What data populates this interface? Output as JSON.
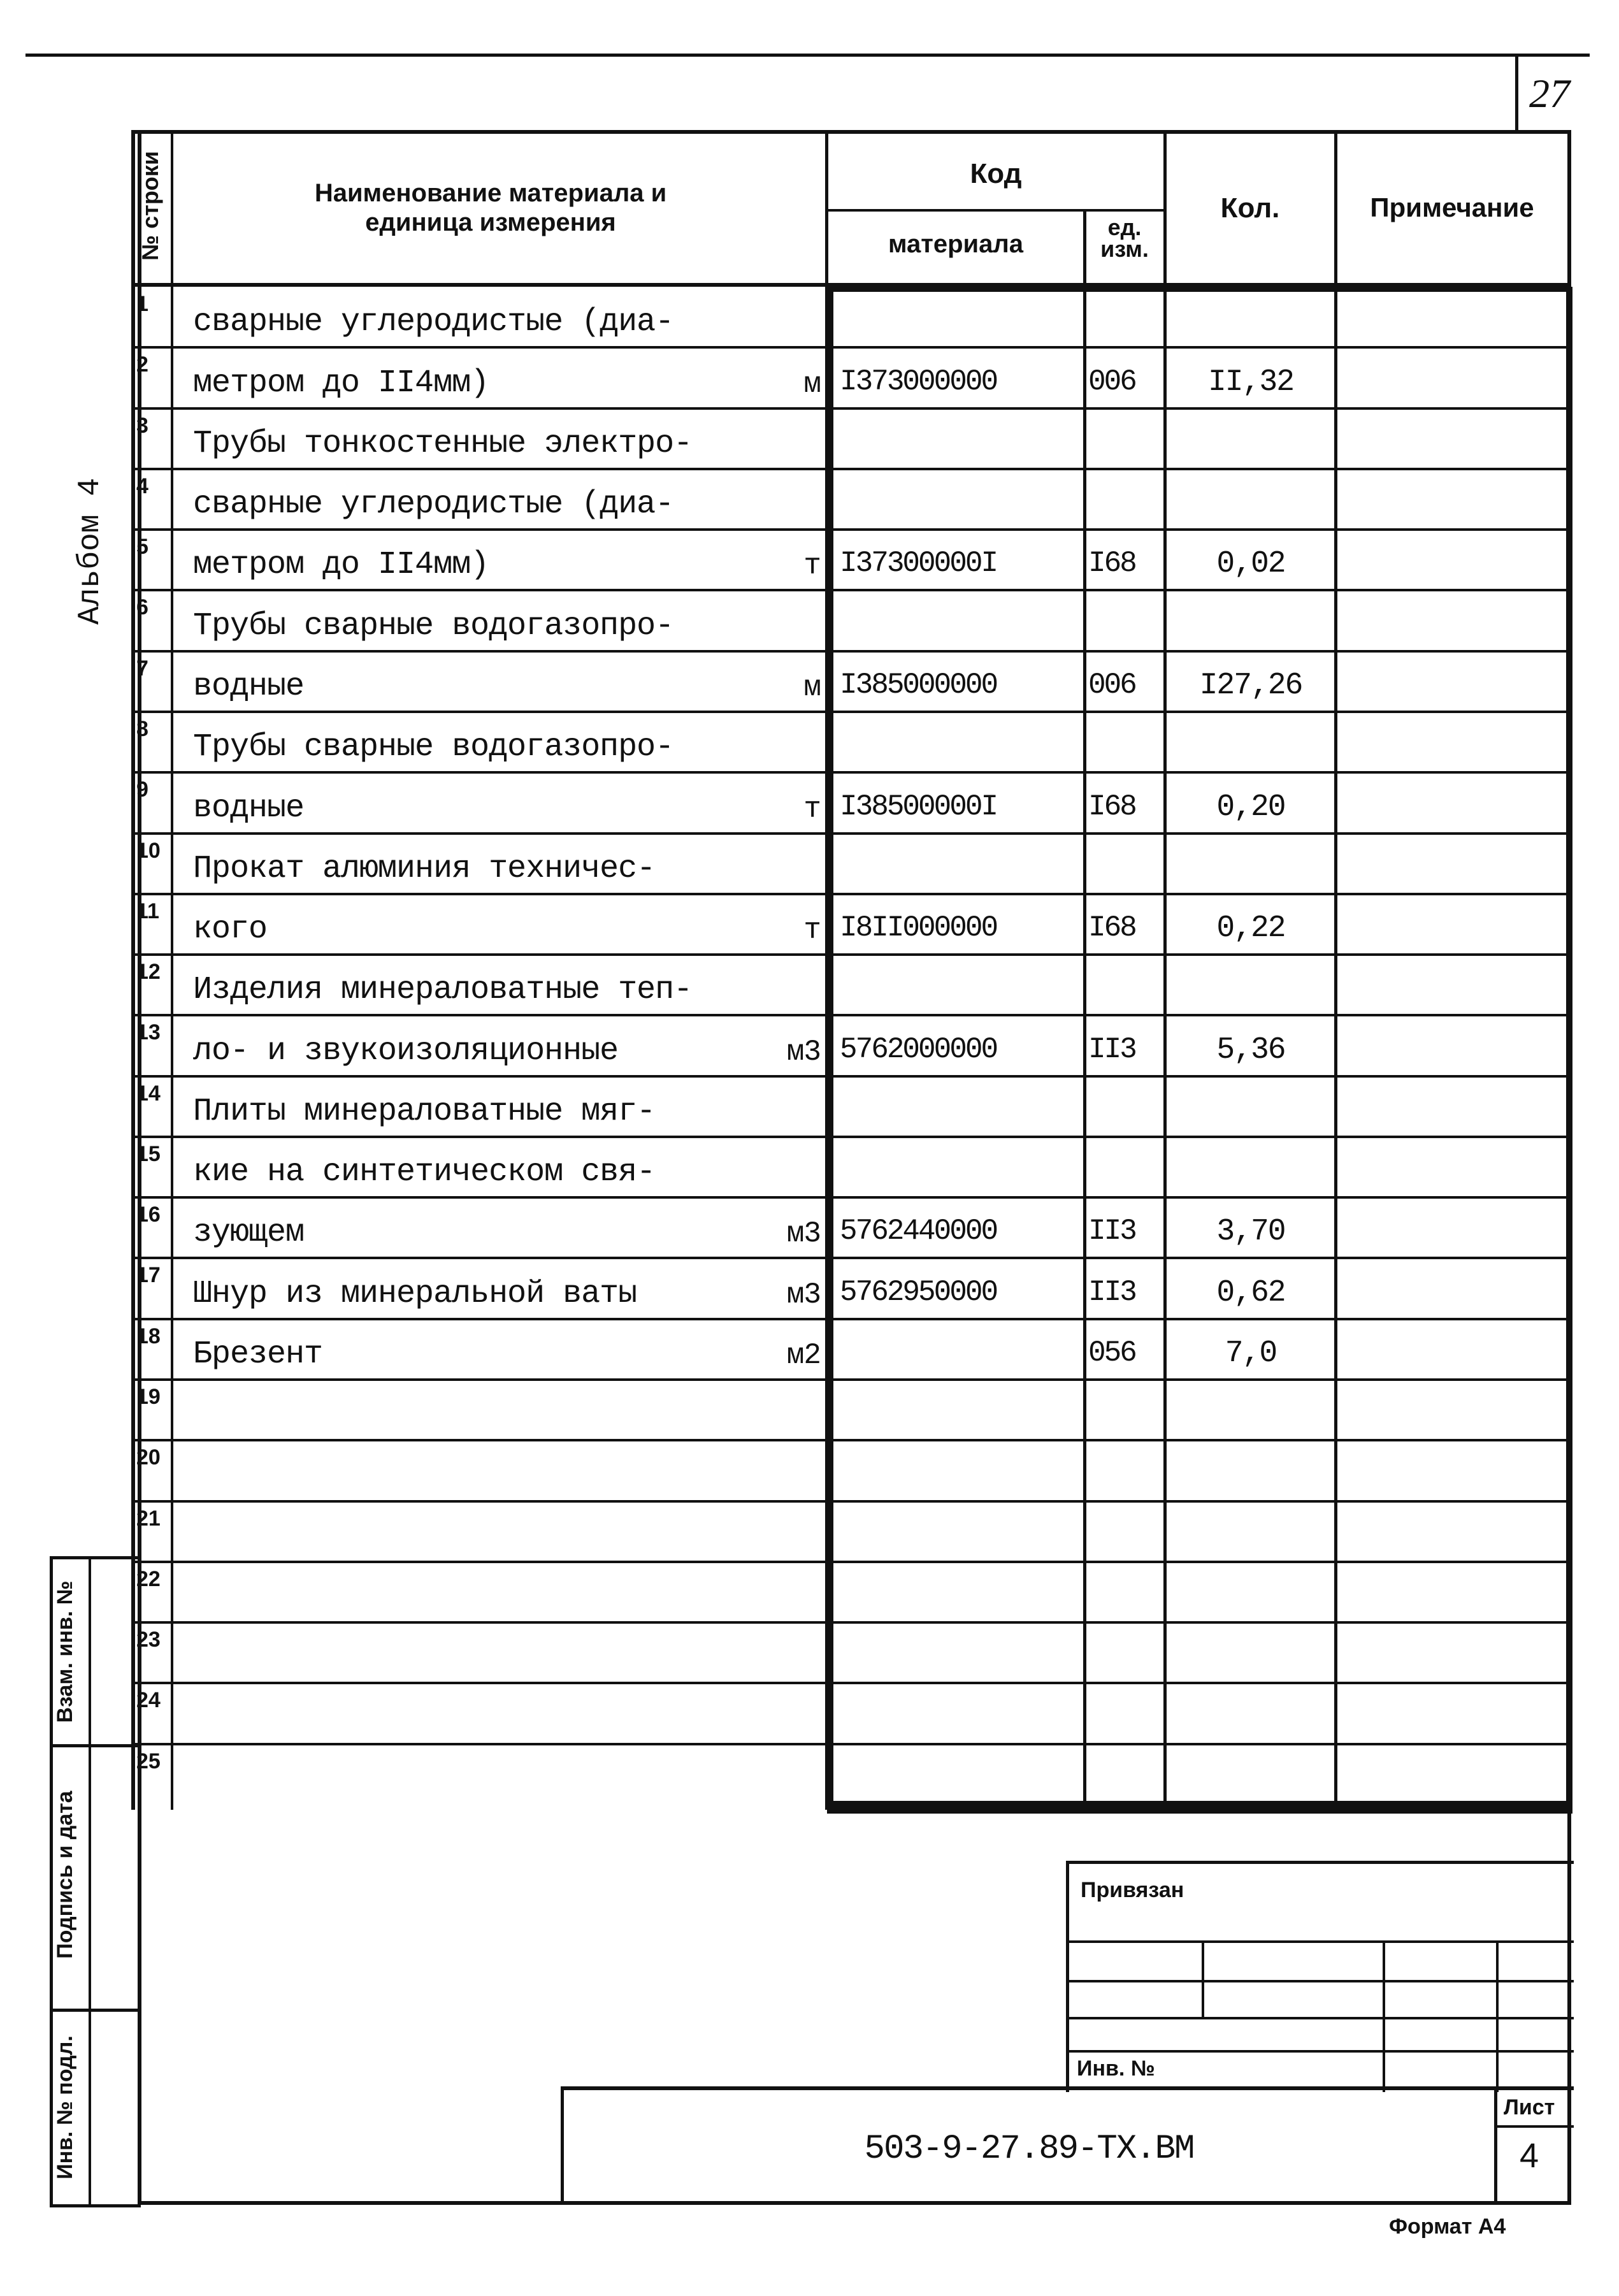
{
  "sheet_number_top": "27",
  "album_label": "Альбом 4",
  "header": {
    "row_no": "№ строки",
    "name": "Наименование материала и единица измерения",
    "code": "Код",
    "code_material": "материала",
    "code_unit": "ед. изм.",
    "qty": "Кол.",
    "note": "Примечание"
  },
  "rows": [
    {
      "n": "1",
      "name": "сварные углеродистые (диа-",
      "unit": "",
      "code": "",
      "unit_code": "",
      "qty": ""
    },
    {
      "n": "2",
      "name": "метром до II4мм)",
      "unit": "м",
      "code": "I373000000",
      "unit_code": "006",
      "qty": "II,32"
    },
    {
      "n": "3",
      "name": "Трубы тонкостенные электро-",
      "unit": "",
      "code": "",
      "unit_code": "",
      "qty": ""
    },
    {
      "n": "4",
      "name": "сварные углеродистые (диа-",
      "unit": "",
      "code": "",
      "unit_code": "",
      "qty": ""
    },
    {
      "n": "5",
      "name": "метром до II4мм)",
      "unit": "т",
      "code": "I37300000I",
      "unit_code": "I68",
      "qty": "0,02"
    },
    {
      "n": "6",
      "name": "Трубы сварные водогазопро-",
      "unit": "",
      "code": "",
      "unit_code": "",
      "qty": ""
    },
    {
      "n": "7",
      "name": "водные",
      "unit": "м",
      "code": "I385000000",
      "unit_code": "006",
      "qty": "I27,26"
    },
    {
      "n": "8",
      "name": "Трубы сварные водогазопро-",
      "unit": "",
      "code": "",
      "unit_code": "",
      "qty": ""
    },
    {
      "n": "9",
      "name": "водные",
      "unit": "т",
      "code": "I38500000I",
      "unit_code": "I68",
      "qty": "0,20"
    },
    {
      "n": "10",
      "name": "Прокат алюминия техничес-",
      "unit": "",
      "code": "",
      "unit_code": "",
      "qty": ""
    },
    {
      "n": "11",
      "name": "кого",
      "unit": "т",
      "code": "I8II000000",
      "unit_code": "I68",
      "qty": "0,22"
    },
    {
      "n": "12",
      "name": "Изделия минераловатные теп-",
      "unit": "",
      "code": "",
      "unit_code": "",
      "qty": ""
    },
    {
      "n": "13",
      "name": "ло- и звукоизоляционные",
      "unit": "м3",
      "code": "5762000000",
      "unit_code": "II3",
      "qty": "5,36"
    },
    {
      "n": "14",
      "name": "Плиты минераловатные мяг-",
      "unit": "",
      "code": "",
      "unit_code": "",
      "qty": ""
    },
    {
      "n": "15",
      "name": "кие на синтетическом свя-",
      "unit": "",
      "code": "",
      "unit_code": "",
      "qty": ""
    },
    {
      "n": "16",
      "name": "зующем",
      "unit": "м3",
      "code": "5762440000",
      "unit_code": "II3",
      "qty": "3,70"
    },
    {
      "n": "17",
      "name": "Шнур из минеральной ваты",
      "unit": "м3",
      "code": "5762950000",
      "unit_code": "II3",
      "qty": "0,62"
    },
    {
      "n": "18",
      "name": "Брезент",
      "unit": "м2",
      "code": "",
      "unit_code": "056",
      "qty": "7,0"
    },
    {
      "n": "19",
      "name": "",
      "unit": "",
      "code": "",
      "unit_code": "",
      "qty": ""
    },
    {
      "n": "20",
      "name": "",
      "unit": "",
      "code": "",
      "unit_code": "",
      "qty": ""
    },
    {
      "n": "21",
      "name": "",
      "unit": "",
      "code": "",
      "unit_code": "",
      "qty": ""
    },
    {
      "n": "22",
      "name": "",
      "unit": "",
      "code": "",
      "unit_code": "",
      "qty": ""
    },
    {
      "n": "23",
      "name": "",
      "unit": "",
      "code": "",
      "unit_code": "",
      "qty": ""
    },
    {
      "n": "24",
      "name": "",
      "unit": "",
      "code": "",
      "unit_code": "",
      "qty": ""
    },
    {
      "n": "25",
      "name": "",
      "unit": "",
      "code": "",
      "unit_code": "",
      "qty": ""
    }
  ],
  "side_stamp": {
    "replace_inv": "Взам. инв. №",
    "signature_date": "Подпись и дата",
    "inv_original": "Инв. № подл."
  },
  "title_block": {
    "bound": "Привязан",
    "inv_no": "Инв. №",
    "sheet_label": "Лист",
    "sheet_value": "4",
    "designation": "503-9-27.89-ТХ.ВМ"
  },
  "format": "Формат А4"
}
